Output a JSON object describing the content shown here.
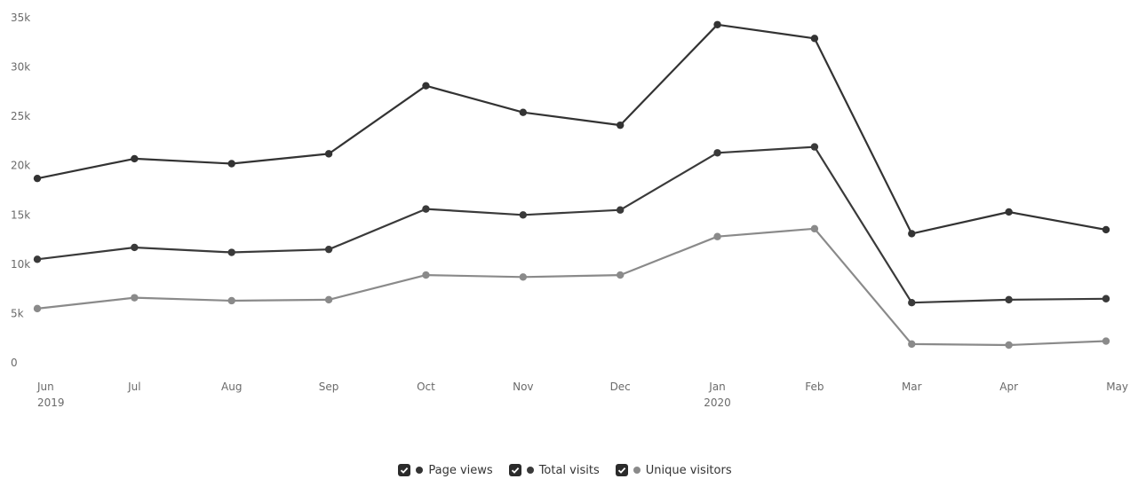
{
  "chart_data": {
    "type": "line",
    "categories": [
      "Jun",
      "Jul",
      "Aug",
      "Sep",
      "Oct",
      "Nov",
      "Dec",
      "Jan",
      "Feb",
      "Mar",
      "Apr",
      "May"
    ],
    "year_labels": [
      "2019",
      "",
      "",
      "",
      "",
      "",
      "",
      "2020",
      "",
      "",
      "",
      ""
    ],
    "y_ticks": [
      0,
      5000,
      10000,
      15000,
      20000,
      25000,
      30000,
      35000
    ],
    "y_tick_labels": [
      "0",
      "5k",
      "10k",
      "15k",
      "20k",
      "25k",
      "30k",
      "35k"
    ],
    "ylim": [
      0,
      35000
    ],
    "grid": false,
    "legend_position": "bottom-center",
    "series": [
      {
        "name": "Page views",
        "color": "#333333",
        "values": [
          18700,
          20700,
          20200,
          21200,
          28100,
          25400,
          24100,
          34300,
          32900,
          13100,
          15300,
          13500
        ]
      },
      {
        "name": "Total visits",
        "color": "#3a3a3a",
        "values": [
          10500,
          11700,
          11200,
          11500,
          15600,
          15000,
          15500,
          21300,
          21900,
          6100,
          6400,
          6500
        ]
      },
      {
        "name": "Unique visitors",
        "color": "#8a8a8a",
        "values": [
          5500,
          6600,
          6300,
          6400,
          8900,
          8700,
          8900,
          12800,
          13600,
          1900,
          1800,
          2200
        ]
      }
    ]
  },
  "legend": {
    "items": [
      {
        "label": "Page views",
        "color": "#333333",
        "checked": true
      },
      {
        "label": "Total visits",
        "color": "#3a3a3a",
        "checked": true
      },
      {
        "label": "Unique visitors",
        "color": "#8a8a8a",
        "checked": true
      }
    ]
  }
}
